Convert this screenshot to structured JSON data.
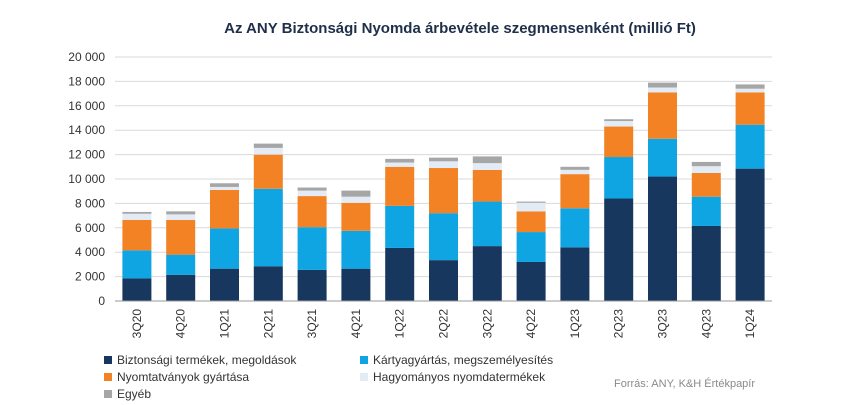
{
  "chart_data": {
    "type": "bar",
    "stacked": true,
    "title": "Az ANY Biztonsági Nyomda árbevétele szegmensenként (millió Ft)",
    "categories": [
      "3Q20",
      "4Q20",
      "1Q21",
      "2Q21",
      "3Q21",
      "4Q21",
      "1Q22",
      "2Q22",
      "3Q22",
      "4Q22",
      "1Q23",
      "2Q23",
      "3Q23",
      "4Q23",
      "1Q24"
    ],
    "ylim": [
      0,
      20000
    ],
    "ytick_labels": [
      "0",
      "2 000",
      "4 000",
      "6 000",
      "8 000",
      "10 000",
      "12 000",
      "14 000",
      "16 000",
      "18 000",
      "20 000"
    ],
    "ytick_values": [
      0,
      2000,
      4000,
      6000,
      8000,
      10000,
      12000,
      14000,
      16000,
      18000,
      20000
    ],
    "series": [
      {
        "name": "Biztonsági termékek, megoldások",
        "color": "#17375e",
        "values": [
          1850,
          2150,
          2650,
          2850,
          2550,
          2650,
          4350,
          3350,
          4500,
          3200,
          4400,
          8400,
          10200,
          6150,
          10850
        ]
      },
      {
        "name": "Kártyagyártás, megszemélyesítés",
        "color": "#0fa5e3",
        "values": [
          2300,
          1650,
          3300,
          6350,
          3500,
          3100,
          3450,
          3850,
          3650,
          2450,
          3200,
          3400,
          3100,
          2400,
          3600
        ]
      },
      {
        "name": "Nyomtatványok gyártása",
        "color": "#f28223",
        "values": [
          2500,
          2850,
          3150,
          2800,
          2550,
          2300,
          3200,
          3700,
          2600,
          1700,
          2800,
          2500,
          3800,
          1950,
          2650
        ]
      },
      {
        "name": "Hagyományos nyomdatermékek",
        "color": "#e3ecf6",
        "values": [
          500,
          450,
          250,
          550,
          450,
          500,
          350,
          550,
          550,
          700,
          350,
          450,
          400,
          550,
          300
        ]
      },
      {
        "name": "Egyéb",
        "color": "#a6a6a6",
        "values": [
          150,
          250,
          300,
          350,
          250,
          500,
          300,
          300,
          550,
          100,
          250,
          150,
          400,
          350,
          350
        ]
      }
    ],
    "grid": "horizontal",
    "legend_position": "bottom-left"
  },
  "source": "Forrás: ANY, K&H Értékpapír"
}
